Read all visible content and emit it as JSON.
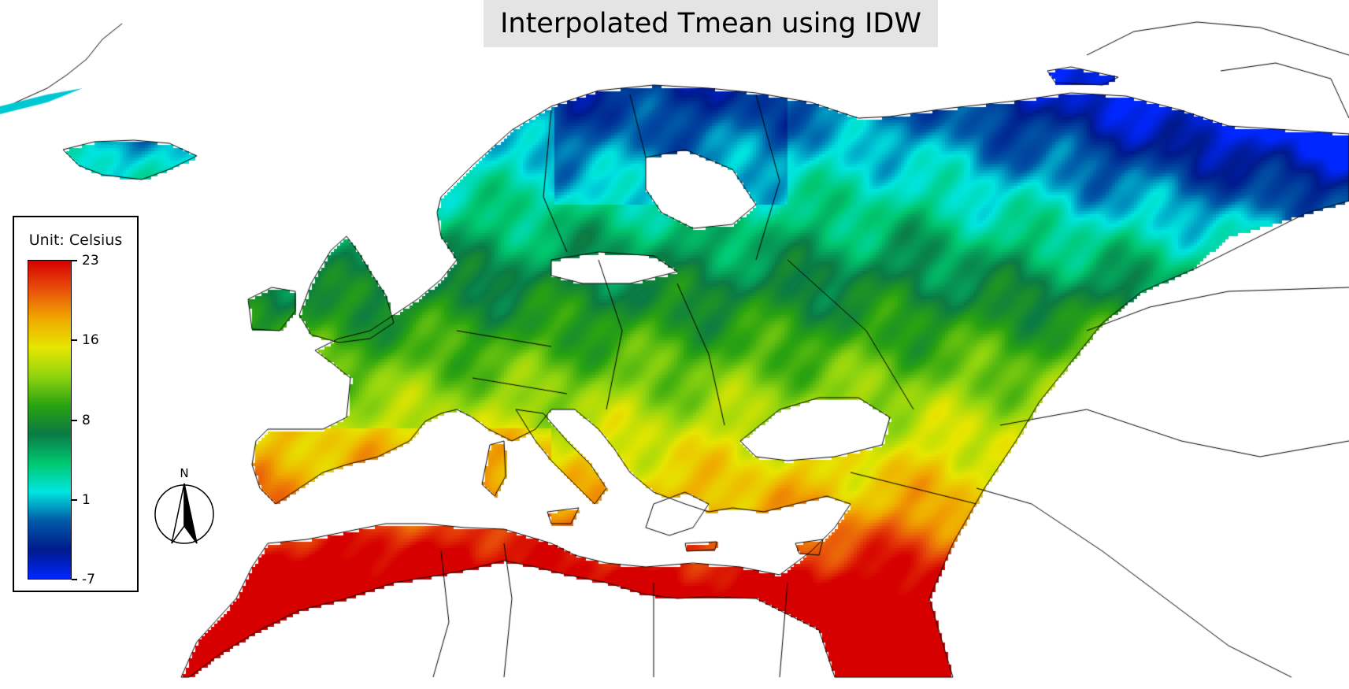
{
  "title": "Interpolated Tmean using IDW",
  "legend": {
    "unit_label": "Unit: Celsius",
    "ticks": [
      "23",
      "16",
      "8",
      "1",
      "-7"
    ],
    "min": -7,
    "max": 23
  },
  "north_arrow": {
    "label": "N",
    "icon": "north-arrow-icon"
  },
  "colormap": [
    "#0027ff",
    "#001a8c",
    "#005aa8",
    "#00e5e0",
    "#00c870",
    "#0a7a45",
    "#2aa310",
    "#8fd40f",
    "#e6e600",
    "#f0a800",
    "#e8500a",
    "#d60000"
  ],
  "colors": {
    "title_background": "#e4e4e4",
    "coast": "#000000",
    "background": "#ffffff"
  }
}
